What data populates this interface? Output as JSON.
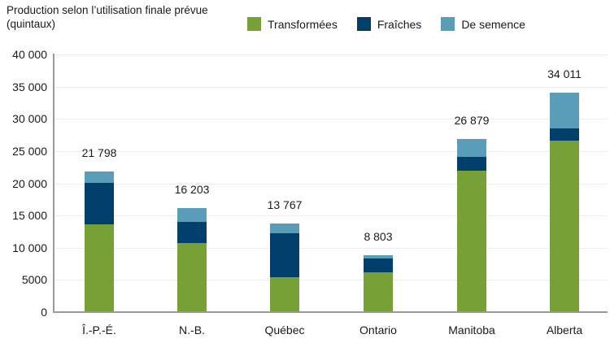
{
  "chart_data": {
    "type": "bar",
    "stacked": true,
    "title": "Production selon l’utilisation finale prévue (quintaux)",
    "title_lines": [
      "Production selon l’utilisation finale prévue",
      "(quintaux)"
    ],
    "xlabel": "",
    "ylabel": "",
    "ylim": [
      0,
      40000
    ],
    "yticks": [
      0,
      5000,
      10000,
      15000,
      20000,
      25000,
      30000,
      35000,
      40000
    ],
    "ytick_labels": [
      "0",
      "5000",
      "10 000",
      "15 000",
      "20 000",
      "25 000",
      "30 000",
      "35 000",
      "40 000"
    ],
    "grid": true,
    "legend_position": "top",
    "categories": [
      "Î.-P.-É.",
      "N.-B.",
      "Québec",
      "Ontario",
      "Manitoba",
      "Alberta"
    ],
    "series": [
      {
        "name": "Transformées",
        "color": "#77a136",
        "values": [
          13600,
          10700,
          5400,
          6240,
          21950,
          26600
        ]
      },
      {
        "name": "Fraîches",
        "color": "#003f6b",
        "values": [
          6450,
          3300,
          6850,
          2140,
          2150,
          1950
        ]
      },
      {
        "name": "De semence",
        "color": "#5a9db8",
        "values": [
          1748,
          2203,
          1517,
          423,
          2779,
          5461
        ]
      }
    ],
    "totals": [
      21798,
      16203,
      13767,
      8803,
      26879,
      34011
    ],
    "total_labels": [
      "21 798",
      "16 203",
      "13 767",
      "8 803",
      "26 879",
      "34 011"
    ]
  },
  "colors": {
    "transformees": "#77a136",
    "fraiches": "#003f6b",
    "semence": "#5a9db8",
    "axis": "#9a9a9a",
    "grid": "#ececec"
  }
}
